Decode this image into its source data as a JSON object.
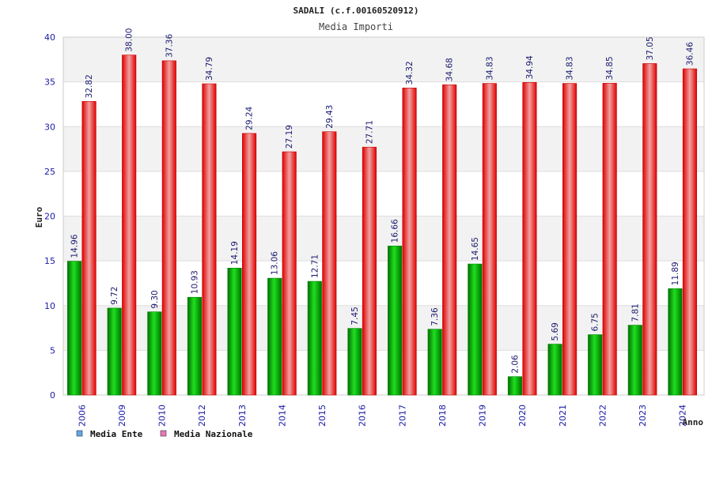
{
  "chart_data": {
    "type": "bar",
    "title": "SADALI (c.f.00160520912)",
    "subtitle": "Media Importi",
    "xlabel": "Anno",
    "ylabel": "Euro",
    "ylim": [
      0,
      40
    ],
    "yticks": [
      0,
      5,
      10,
      15,
      20,
      25,
      30,
      35,
      40
    ],
    "grid": true,
    "legend_position": "bottom-left",
    "categories": [
      "2006",
      "2009",
      "2010",
      "2012",
      "2013",
      "2014",
      "2015",
      "2016",
      "2017",
      "2018",
      "2019",
      "2020",
      "2021",
      "2022",
      "2023",
      "2024"
    ],
    "series": [
      {
        "name": "Media Ente",
        "color": "#00bb00",
        "legend_color": "#5fa8e8",
        "values": [
          14.96,
          9.72,
          9.3,
          10.93,
          14.19,
          13.06,
          12.71,
          7.45,
          16.66,
          7.36,
          14.65,
          2.06,
          5.69,
          6.75,
          7.81,
          11.89
        ],
        "labels": [
          "14.96",
          "9.72",
          "9.30",
          "10.93",
          "14.19",
          "13.06",
          "12.71",
          "7.45",
          "16.66",
          "7.36",
          "14.65",
          "2.06",
          "5.69",
          "6.75",
          "7.81",
          "11.89"
        ]
      },
      {
        "name": "Media Nazionale",
        "color": "#ee0000",
        "legend_color": "#e47ab4",
        "values": [
          32.82,
          38.0,
          37.36,
          34.79,
          29.24,
          27.19,
          29.43,
          27.71,
          34.32,
          34.68,
          34.83,
          34.94,
          34.83,
          34.85,
          37.05,
          36.46
        ],
        "labels": [
          "32.82",
          "38.00",
          "37.36",
          "34.79",
          "29.24",
          "27.19",
          "29.43",
          "27.71",
          "34.32",
          "34.68",
          "34.83",
          "34.94",
          "34.83",
          "34.85",
          "37.05",
          "36.46"
        ]
      }
    ]
  }
}
